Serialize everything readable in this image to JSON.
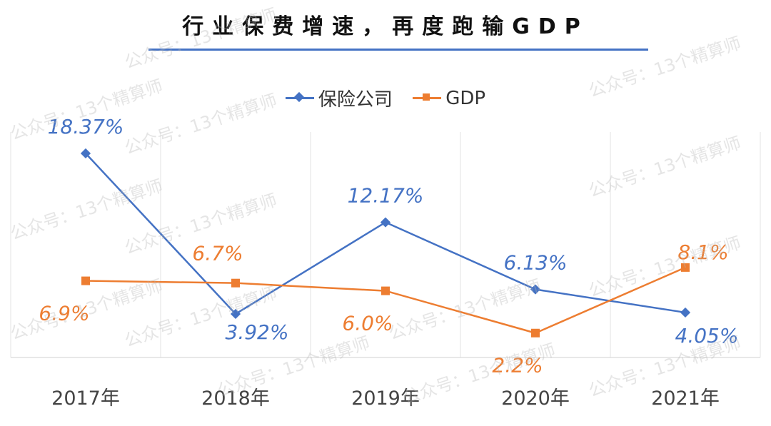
{
  "watermark": "公众号：13个精算师",
  "chart_data": {
    "type": "line",
    "title": "行业保费增速，再度跑输GDP",
    "categories": [
      "2017年",
      "2018年",
      "2019年",
      "2020年",
      "2021年"
    ],
    "series": [
      {
        "name": "保险公司",
        "values": [
          18.37,
          3.92,
          12.17,
          6.13,
          4.05
        ],
        "labels": [
          "18.37%",
          "3.92%",
          "12.17%",
          "6.13%",
          "4.05%"
        ],
        "color": "#4472c4",
        "marker": "diamond"
      },
      {
        "name": "GDP",
        "values": [
          6.9,
          6.7,
          6.0,
          2.2,
          8.1
        ],
        "labels": [
          "6.9%",
          "6.7%",
          "6.0%",
          "2.2%",
          "8.1%"
        ],
        "color": "#ed7d31",
        "marker": "square"
      }
    ],
    "ylim": [
      0,
      20
    ],
    "grid": "vertical",
    "legend": "top"
  }
}
